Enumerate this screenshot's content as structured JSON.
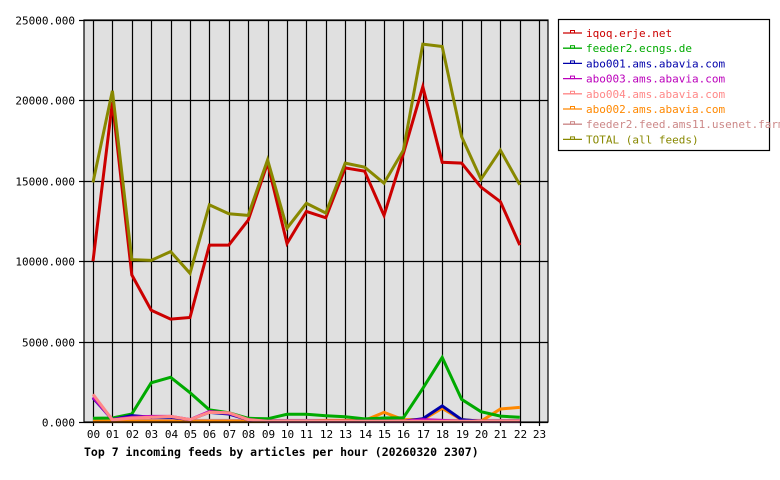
{
  "chart_data": {
    "type": "line",
    "title": "Top 7 incoming feeds by articles per hour (20260320 2307)",
    "xlabel": "",
    "ylabel": "",
    "ylim": [
      0,
      25000
    ],
    "yticks": [
      "0.000",
      "5000.000",
      "10000.000",
      "15000.000",
      "20000.000",
      "25000.000"
    ],
    "ytick_values": [
      0,
      5000,
      10000,
      15000,
      20000,
      25000
    ],
    "categories": [
      "00",
      "01",
      "02",
      "03",
      "04",
      "05",
      "06",
      "07",
      "08",
      "09",
      "10",
      "11",
      "12",
      "13",
      "14",
      "15",
      "16",
      "17",
      "18",
      "19",
      "20",
      "21",
      "22",
      "23"
    ],
    "grid": true,
    "legend_position": "right",
    "series": [
      {
        "name": "iqoq.erje.net",
        "color": "#cc0000",
        "values": [
          10000,
          19900,
          9150,
          6950,
          6400,
          6500,
          11000,
          11000,
          12550,
          16100,
          11100,
          13100,
          12700,
          15800,
          15600,
          12850,
          16700,
          20850,
          16150,
          16100,
          14600,
          13700,
          11000
        ]
      },
      {
        "name": "feeder2.ecngs.de",
        "color": "#00aa00",
        "values": [
          230,
          250,
          500,
          2440,
          2780,
          1820,
          750,
          580,
          230,
          200,
          480,
          480,
          390,
          330,
          190,
          250,
          270,
          2090,
          4020,
          1410,
          640,
          370,
          290
        ]
      },
      {
        "name": "abo001.ams.abavia.com",
        "color": "#0000aa",
        "values": [
          1500,
          150,
          400,
          300,
          300,
          150,
          600,
          500,
          150,
          50,
          50,
          50,
          50,
          50,
          50,
          50,
          50,
          200,
          1000,
          150,
          50,
          50,
          50
        ]
      },
      {
        "name": "abo003.ams.abavia.com",
        "color": "#bb00bb",
        "values": [
          1550,
          150,
          300,
          350,
          350,
          150,
          650,
          550,
          150,
          50,
          50,
          50,
          50,
          50,
          50,
          50,
          50,
          150,
          100,
          50,
          50,
          50,
          50
        ]
      },
      {
        "name": "abo004.ams.abavia.com",
        "color": "#ff8888",
        "values": [
          1720,
          130,
          250,
          300,
          350,
          150,
          600,
          580,
          150,
          50,
          50,
          50,
          50,
          50,
          50,
          50,
          50,
          50,
          50,
          50,
          50,
          50,
          50
        ]
      },
      {
        "name": "abo002.ams.abavia.com",
        "color": "#ff8800",
        "values": [
          50,
          50,
          50,
          50,
          50,
          50,
          50,
          50,
          50,
          50,
          50,
          50,
          100,
          100,
          100,
          600,
          150,
          150,
          850,
          150,
          50,
          810,
          910
        ]
      },
      {
        "name": "feeder2.feed.ams11.usenet.farm",
        "color": "#cc8888",
        "values": [
          100,
          100,
          100,
          100,
          100,
          100,
          100,
          100,
          100,
          100,
          100,
          100,
          100,
          100,
          100,
          100,
          100,
          100,
          100,
          100,
          100,
          100,
          100
        ]
      },
      {
        "name": "TOTAL (all feeds)",
        "color": "#888800",
        "values": [
          14900,
          20600,
          10100,
          10050,
          10600,
          9250,
          13500,
          12950,
          12850,
          16300,
          12050,
          13600,
          13000,
          16100,
          15850,
          14850,
          16900,
          23500,
          23350,
          17750,
          15100,
          16900,
          14750
        ]
      }
    ]
  },
  "colors": {
    "plot_background": "#e0e0e0",
    "gridline": "#000000",
    "axis": "#000000"
  }
}
